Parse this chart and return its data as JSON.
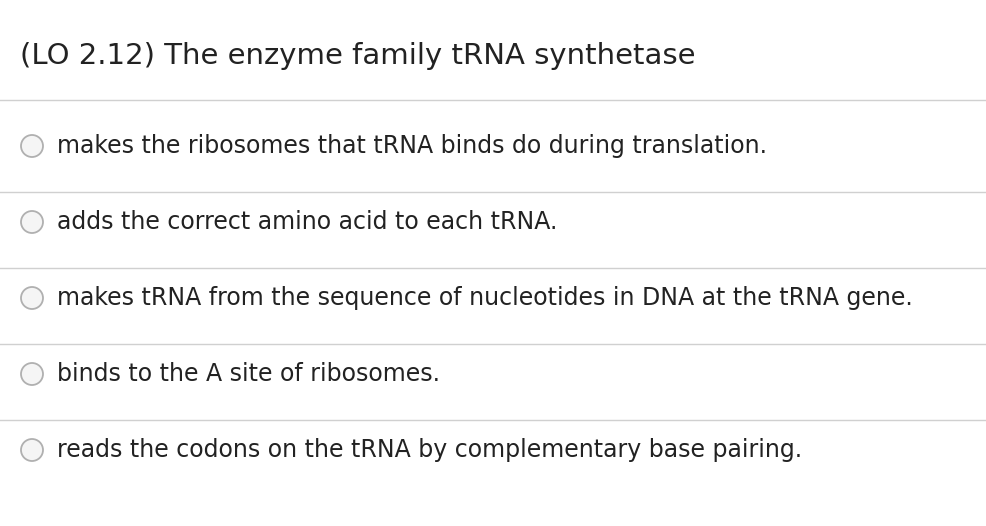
{
  "title": "(LO 2.12) The enzyme family tRNA synthetase",
  "options": [
    "makes the ribosomes that tRNA binds do during translation.",
    "adds the correct amino acid to each tRNA.",
    "makes tRNA from the sequence of nucleotides in DNA at the tRNA gene.",
    "binds to the A site of ribosomes.",
    "reads the codons on the tRNA by complementary base pairing."
  ],
  "bg_color": "#ffffff",
  "text_color": "#222222",
  "line_color": "#d0d0d0",
  "title_fontsize": 21,
  "option_fontsize": 17,
  "circle_edge_color": "#b0b0b0",
  "circle_fill_color": "#f5f5f5"
}
